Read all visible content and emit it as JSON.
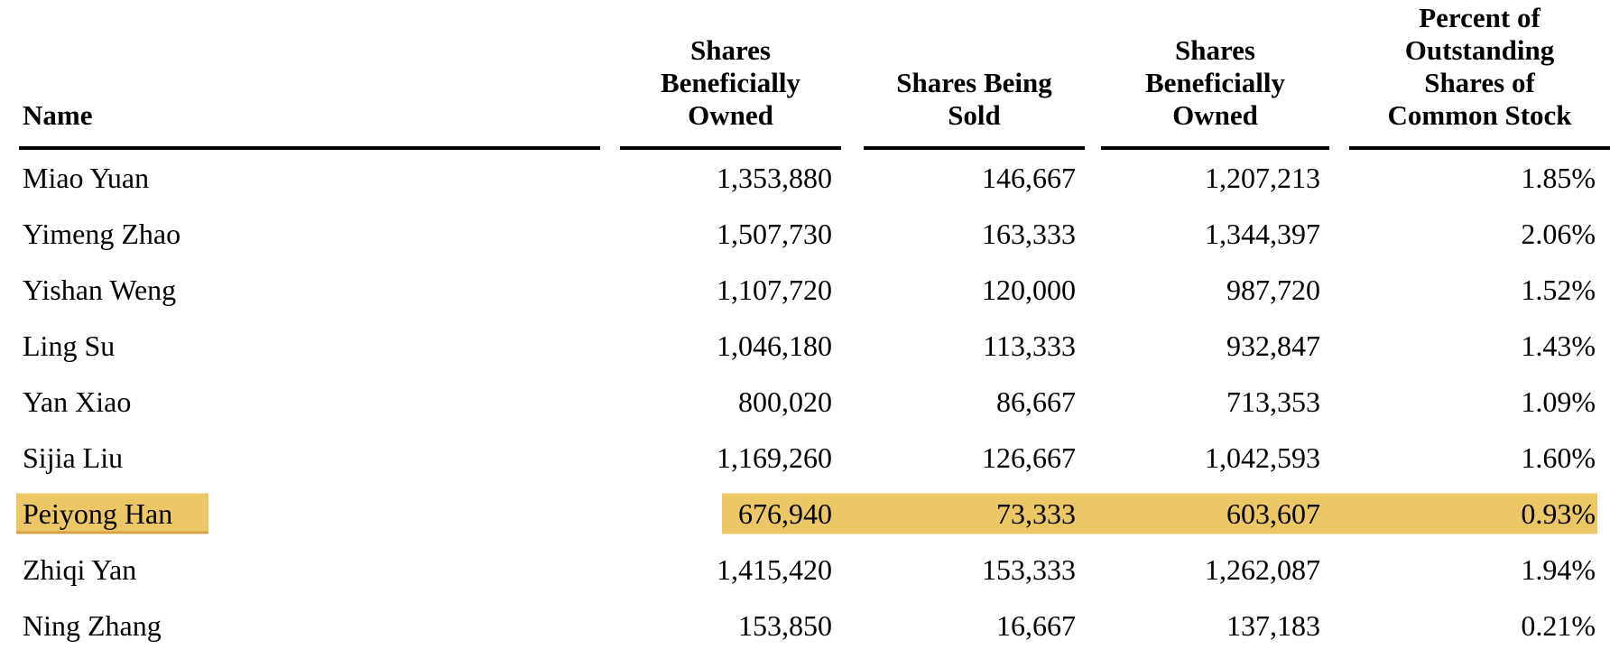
{
  "table": {
    "description": "Selling stockholders share ownership table",
    "headers": [
      {
        "lines": [
          "Name"
        ]
      },
      {
        "lines": [
          "Shares",
          "Beneficially",
          "Owned"
        ]
      },
      {
        "lines": [
          "Shares Being",
          "Sold"
        ]
      },
      {
        "lines": [
          "Shares",
          "Beneficially",
          "Owned"
        ]
      },
      {
        "lines": [
          "Percent of",
          "Outstanding",
          "Shares of",
          "Common Stock"
        ]
      }
    ],
    "rows": [
      {
        "name": "Miao Yuan",
        "before": "1,353,880",
        "sold": "146,667",
        "after": "1,207,213",
        "percent": "1.85%"
      },
      {
        "name": "Yimeng Zhao",
        "before": "1,507,730",
        "sold": "163,333",
        "after": "1,344,397",
        "percent": "2.06%"
      },
      {
        "name": "Yishan Weng",
        "before": "1,107,720",
        "sold": "120,000",
        "after": "987,720",
        "percent": "1.52%"
      },
      {
        "name": "Ling Su",
        "before": "1,046,180",
        "sold": "113,333",
        "after": "932,847",
        "percent": "1.43%"
      },
      {
        "name": "Yan Xiao",
        "before": "800,020",
        "sold": "86,667",
        "after": "713,353",
        "percent": "1.09%"
      },
      {
        "name": "Sijia Liu",
        "before": "1,169,260",
        "sold": "126,667",
        "after": "1,042,593",
        "percent": "1.60%"
      },
      {
        "name": "Peiyong Han",
        "before": "676,940",
        "sold": "73,333",
        "after": "603,607",
        "percent": "0.93%",
        "highlighted": true
      },
      {
        "name": "Zhiqi Yan",
        "before": "1,415,420",
        "sold": "153,333",
        "after": "1,262,087",
        "percent": "1.94%"
      },
      {
        "name": "Ning Zhang",
        "before": "153,850",
        "sold": "16,667",
        "after": "137,183",
        "percent": "0.21%"
      }
    ],
    "highlight": {
      "row_name": "Peiyong Han",
      "color": "#ECC765",
      "underline_color": "#D9A245"
    }
  }
}
